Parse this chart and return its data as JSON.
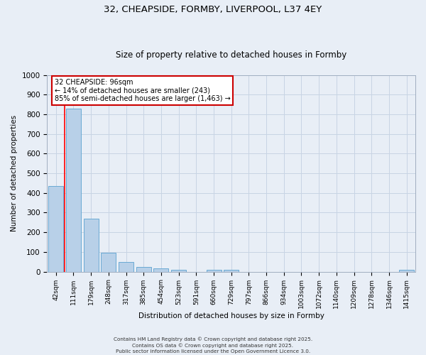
{
  "title1": "32, CHEAPSIDE, FORMBY, LIVERPOOL, L37 4EY",
  "title2": "Size of property relative to detached houses in Formby",
  "xlabel": "Distribution of detached houses by size in Formby",
  "ylabel": "Number of detached properties",
  "bar_labels": [
    "42sqm",
    "111sqm",
    "179sqm",
    "248sqm",
    "317sqm",
    "385sqm",
    "454sqm",
    "523sqm",
    "591sqm",
    "660sqm",
    "729sqm",
    "797sqm",
    "866sqm",
    "934sqm",
    "1003sqm",
    "1072sqm",
    "1140sqm",
    "1209sqm",
    "1278sqm",
    "1346sqm",
    "1415sqm"
  ],
  "bar_values": [
    435,
    830,
    270,
    95,
    50,
    23,
    15,
    10,
    0,
    10,
    10,
    0,
    0,
    0,
    0,
    0,
    0,
    0,
    0,
    0,
    10
  ],
  "bar_color": "#b8d0e8",
  "bar_edge_color": "#6aaad4",
  "grid_color": "#c8d4e4",
  "background_color": "#e8eef6",
  "annotation_text": "32 CHEAPSIDE: 96sqm\n← 14% of detached houses are smaller (243)\n85% of semi-detached houses are larger (1,463) →",
  "annotation_box_color": "#ffffff",
  "annotation_edge_color": "#cc0000",
  "red_line_x": 0.5,
  "ylim": [
    0,
    1000
  ],
  "yticks": [
    0,
    100,
    200,
    300,
    400,
    500,
    600,
    700,
    800,
    900,
    1000
  ],
  "footer": "Contains HM Land Registry data © Crown copyright and database right 2025.\nContains OS data © Crown copyright and database right 2025.\nPublic sector information licensed under the Open Government Licence 3.0."
}
